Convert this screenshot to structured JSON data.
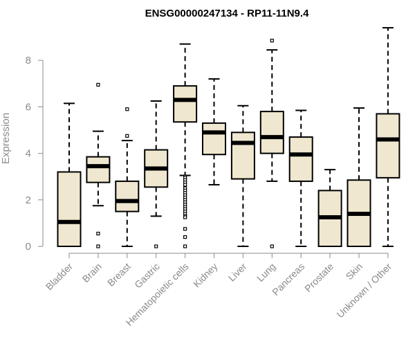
{
  "chart_data": {
    "type": "boxplot",
    "title": "ENSG00000247134 - RP11-11N9.4",
    "ylabel": "Expression",
    "xlabel": "",
    "ylim": [
      0,
      9.5
    ],
    "yticks": [
      0,
      2,
      4,
      6,
      8
    ],
    "colors": {
      "box_fill": "#efe7cf",
      "stroke": "#000000",
      "axis": "#8a8a8a"
    },
    "categories": [
      "Bladder",
      "Brain",
      "Breast",
      "Gastric",
      "Hematopoietic cells",
      "Kidney",
      "Liver",
      "Lung",
      "Pancreas",
      "Prostate",
      "Skin",
      "Unknown / Other"
    ],
    "boxes": [
      {
        "name": "Bladder",
        "min": 0,
        "q1": 0,
        "median": 1.05,
        "q3": 3.2,
        "max": 6.15,
        "outliers": []
      },
      {
        "name": "Brain",
        "min": 1.75,
        "q1": 2.75,
        "median": 3.45,
        "q3": 3.85,
        "max": 4.95,
        "outliers": [
          6.95,
          0.55,
          0
        ]
      },
      {
        "name": "Breast",
        "min": 0,
        "q1": 1.5,
        "median": 1.95,
        "q3": 2.8,
        "max": 4.55,
        "outliers": [
          5.9,
          4.75
        ]
      },
      {
        "name": "Gastric",
        "min": 1.3,
        "q1": 2.55,
        "median": 3.35,
        "q3": 4.15,
        "max": 6.25,
        "outliers": [
          0
        ]
      },
      {
        "name": "Hematopoietic cells",
        "min": 3.05,
        "q1": 5.35,
        "median": 6.3,
        "q3": 6.9,
        "max": 8.7,
        "outliers": [
          3.0,
          2.95,
          2.85,
          2.75,
          2.65,
          2.5,
          2.4,
          2.3,
          2.2,
          2.1,
          2.0,
          1.9,
          1.8,
          1.7,
          1.6,
          1.5,
          1.4,
          1.3,
          1.25,
          0.75,
          0.4,
          0
        ]
      },
      {
        "name": "Kidney",
        "min": 2.65,
        "q1": 3.95,
        "median": 4.9,
        "q3": 5.3,
        "max": 7.2,
        "outliers": []
      },
      {
        "name": "Liver",
        "min": 0,
        "q1": 2.9,
        "median": 4.45,
        "q3": 4.9,
        "max": 6.05,
        "outliers": []
      },
      {
        "name": "Lung",
        "min": 2.8,
        "q1": 4.0,
        "median": 4.7,
        "q3": 5.8,
        "max": 8.45,
        "outliers": [
          8.85,
          0
        ]
      },
      {
        "name": "Pancreas",
        "min": 0,
        "q1": 2.8,
        "median": 3.95,
        "q3": 4.7,
        "max": 5.85,
        "outliers": []
      },
      {
        "name": "Prostate",
        "min": 0,
        "q1": 0,
        "median": 1.25,
        "q3": 2.4,
        "max": 3.3,
        "outliers": []
      },
      {
        "name": "Skin",
        "min": 0,
        "q1": 0,
        "median": 1.4,
        "q3": 2.85,
        "max": 5.95,
        "outliers": []
      },
      {
        "name": "Unknown / Other",
        "min": 0,
        "q1": 2.95,
        "median": 4.6,
        "q3": 5.7,
        "max": 9.4,
        "outliers": []
      }
    ]
  }
}
